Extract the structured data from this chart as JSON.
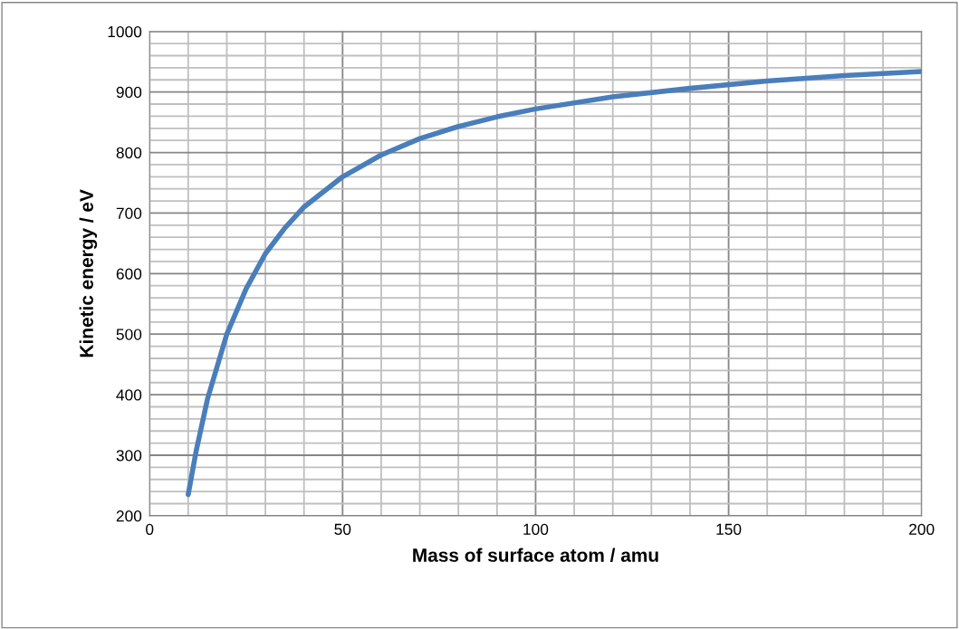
{
  "chart_data": {
    "type": "line",
    "xlabel": "Mass of surface atom / amu",
    "ylabel": "Kinetic energy / eV",
    "x": [
      10,
      12,
      15,
      20,
      25,
      30,
      35,
      40,
      50,
      60,
      70,
      80,
      90,
      100,
      120,
      140,
      160,
      180,
      200
    ],
    "series": [
      {
        "color": "#4a7ebb",
        "values": [
          235,
          305,
          393,
          500,
          575,
          633,
          675,
          710,
          760,
          796,
          823,
          843,
          859,
          872,
          892,
          906,
          918,
          927,
          934
        ]
      }
    ],
    "xlim": [
      0,
      200
    ],
    "ylim": [
      200,
      1000
    ],
    "xticks": [
      0,
      {
        "value": 10,
        "label": null
      },
      {
        "value": 20,
        "label": null
      },
      {
        "value": 30,
        "label": null
      },
      {
        "value": 40,
        "label": null
      },
      50,
      {
        "value": 60,
        "label": null
      },
      {
        "value": 70,
        "label": null
      },
      {
        "value": 80,
        "label": null
      },
      {
        "value": 90,
        "label": null
      },
      100,
      {
        "value": 110,
        "label": null
      },
      {
        "value": 120,
        "label": null
      },
      {
        "value": 130,
        "label": null
      },
      {
        "value": 140,
        "label": null
      },
      150,
      {
        "value": 160,
        "label": null
      },
      {
        "value": 170,
        "label": null
      },
      {
        "value": 180,
        "label": null
      },
      {
        "value": 190,
        "label": null
      },
      200
    ],
    "yticks": [
      200,
      {
        "value": 220,
        "label": null
      },
      {
        "value": 240,
        "label": null
      },
      {
        "value": 260,
        "label": null
      },
      {
        "value": 280,
        "label": null
      },
      300,
      {
        "value": 320,
        "label": null
      },
      {
        "value": 340,
        "label": null
      },
      {
        "value": 360,
        "label": null
      },
      {
        "value": 380,
        "label": null
      },
      400,
      {
        "value": 420,
        "label": null
      },
      {
        "value": 440,
        "label": null
      },
      {
        "value": 460,
        "label": null
      },
      {
        "value": 480,
        "label": null
      },
      500,
      {
        "value": 520,
        "label": null
      },
      {
        "value": 540,
        "label": null
      },
      {
        "value": 560,
        "label": null
      },
      {
        "value": 580,
        "label": null
      },
      600,
      {
        "value": 620,
        "label": null
      },
      {
        "value": 640,
        "label": null
      },
      {
        "value": 660,
        "label": null
      },
      {
        "value": 680,
        "label": null
      },
      700,
      {
        "value": 720,
        "label": null
      },
      {
        "value": 740,
        "label": null
      },
      {
        "value": 760,
        "label": null
      },
      {
        "value": 780,
        "label": null
      },
      800,
      {
        "value": 820,
        "label": null
      },
      {
        "value": 840,
        "label": null
      },
      {
        "value": 860,
        "label": null
      },
      {
        "value": 880,
        "label": null
      },
      900,
      {
        "value": 920,
        "label": null
      },
      {
        "value": 940,
        "label": null
      },
      {
        "value": 960,
        "label": null
      },
      {
        "value": 980,
        "label": null
      },
      1000
    ],
    "grid": true,
    "marker": "none",
    "line_style": "solid",
    "legend": false
  }
}
